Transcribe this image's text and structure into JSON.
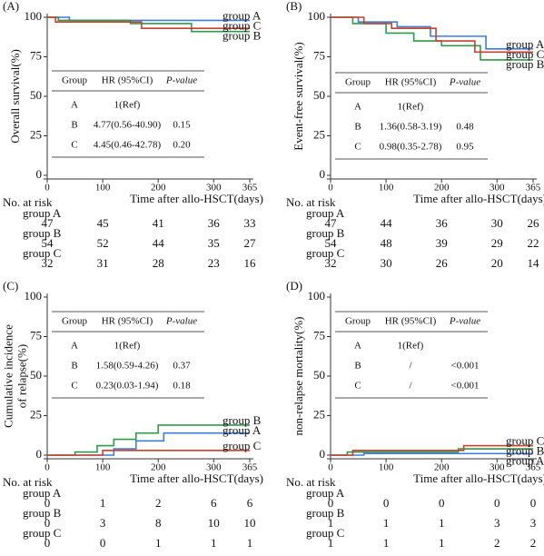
{
  "chart_data": [
    {
      "type": "line",
      "panel": "(A)",
      "y_label": [
        "Overall survival(%)"
      ],
      "x_label": "Time after allo-HSCT(days)",
      "xlim": [
        0,
        365
      ],
      "ylim": [
        0,
        100
      ],
      "xticks": [
        0,
        100,
        200,
        300,
        365
      ],
      "yticks": [
        0,
        25,
        50,
        75,
        100
      ],
      "series": [
        {
          "name": "group A",
          "color": "#3b7dd8",
          "x": [
            0,
            40,
            365
          ],
          "values": [
            100,
            98,
            98
          ]
        },
        {
          "name": "group B",
          "color": "#2e9a4a",
          "x": [
            0,
            20,
            150,
            260,
            365
          ],
          "values": [
            100,
            98,
            96,
            91,
            91
          ]
        },
        {
          "name": "group C",
          "color": "#c8412f",
          "x": [
            0,
            15,
            170,
            365
          ],
          "values": [
            100,
            97,
            93,
            93
          ]
        }
      ],
      "hr_table": {
        "headers": [
          "Group",
          "HR (95%CI)",
          "P-value"
        ],
        "rows": [
          [
            "A",
            "1(Ref)",
            ""
          ],
          [
            "B",
            "4.77(0.56-40.90)",
            "0.15"
          ],
          [
            "C",
            "4.45(0.46-42.78)",
            "0.20"
          ]
        ]
      },
      "at_risk": {
        "title": "No. at risk",
        "rows": [
          {
            "name": "group A",
            "values": [
              47,
              45,
              41,
              36,
              33
            ]
          },
          {
            "name": "group B",
            "values": [
              54,
              52,
              44,
              35,
              27
            ]
          },
          {
            "name": "group C",
            "values": [
              32,
              31,
              28,
              23,
              16
            ]
          }
        ]
      }
    },
    {
      "type": "line",
      "panel": "(B)",
      "y_label": [
        "Event-free survival(%)"
      ],
      "x_label": "Time after allo-HSCT(days)",
      "xlim": [
        0,
        365
      ],
      "ylim": [
        0,
        100
      ],
      "xticks": [
        0,
        100,
        200,
        300,
        365
      ],
      "yticks": [
        0,
        25,
        50,
        75,
        100
      ],
      "series": [
        {
          "name": "group A",
          "color": "#3b7dd8",
          "x": [
            0,
            50,
            120,
            180,
            280,
            365
          ],
          "values": [
            100,
            97,
            94,
            88,
            80,
            80
          ]
        },
        {
          "name": "group B",
          "color": "#2e9a4a",
          "x": [
            0,
            40,
            100,
            150,
            200,
            270,
            365
          ],
          "values": [
            100,
            96,
            90,
            85,
            82,
            73,
            73
          ]
        },
        {
          "name": "group C",
          "color": "#c8412f",
          "x": [
            0,
            60,
            110,
            190,
            260,
            365
          ],
          "values": [
            100,
            96,
            93,
            85,
            78,
            78
          ]
        }
      ],
      "hr_table": {
        "headers": [
          "Group",
          "HR (95%CI)",
          "P-value"
        ],
        "rows": [
          [
            "A",
            "1(Ref)",
            ""
          ],
          [
            "B",
            "1.36(0.58-3.19)",
            "0.48"
          ],
          [
            "C",
            "0.98(0.35-2.78)",
            "0.95"
          ]
        ]
      },
      "at_risk": {
        "title": "No. at risk",
        "rows": [
          {
            "name": "group A",
            "values": [
              47,
              44,
              36,
              30,
              26
            ]
          },
          {
            "name": "group B",
            "values": [
              54,
              48,
              39,
              29,
              22
            ]
          },
          {
            "name": "group C",
            "values": [
              32,
              30,
              26,
              20,
              14
            ]
          }
        ]
      }
    },
    {
      "type": "line",
      "panel": "(C)",
      "y_label": [
        "Cumulative incidence",
        "of relapse(%)"
      ],
      "x_label": "Time after allo-HSCT(days)",
      "xlim": [
        0,
        365
      ],
      "ylim": [
        0,
        100
      ],
      "xticks": [
        0,
        100,
        200,
        300,
        365
      ],
      "yticks": [
        0,
        25,
        50,
        75,
        100
      ],
      "series": [
        {
          "name": "group A",
          "color": "#3b7dd8",
          "x": [
            0,
            120,
            160,
            210,
            365
          ],
          "values": [
            0,
            4,
            9,
            14,
            14
          ]
        },
        {
          "name": "group B",
          "color": "#2e9a4a",
          "x": [
            0,
            50,
            90,
            120,
            160,
            200,
            365
          ],
          "values": [
            0,
            2,
            6,
            10,
            14,
            19,
            19
          ]
        },
        {
          "name": "group C",
          "color": "#c8412f",
          "x": [
            0,
            100,
            365
          ],
          "values": [
            0,
            3,
            3
          ]
        }
      ],
      "hr_table": {
        "headers": [
          "Group",
          "HR (95%CI)",
          "P-value"
        ],
        "rows": [
          [
            "A",
            "1(Ref)",
            ""
          ],
          [
            "B",
            "1.58(0.59-4.26)",
            "0.37"
          ],
          [
            "C",
            "0.23(0.03-1.94)",
            "0.18"
          ]
        ]
      },
      "at_risk": {
        "title": "No. at risk",
        "rows": [
          {
            "name": "group A",
            "values": [
              0,
              1,
              2,
              6,
              6
            ]
          },
          {
            "name": "group B",
            "values": [
              0,
              3,
              8,
              10,
              10
            ]
          },
          {
            "name": "group C",
            "values": [
              0,
              0,
              1,
              1,
              1
            ]
          }
        ]
      }
    },
    {
      "type": "line",
      "panel": "(D)",
      "y_label": [
        "non-relapse mortality(%)"
      ],
      "x_label": "Time after allo-HSCT(days)",
      "xlim": [
        0,
        365
      ],
      "ylim": [
        0,
        100
      ],
      "xticks": [
        0,
        100,
        200,
        300,
        365
      ],
      "yticks": [
        0,
        25,
        50,
        75,
        100
      ],
      "series": [
        {
          "name": "group A",
          "color": "#3b7dd8",
          "x": [
            0,
            60,
            365
          ],
          "values": [
            0,
            1,
            1
          ]
        },
        {
          "name": "group B",
          "color": "#2e9a4a",
          "x": [
            0,
            30,
            230,
            365
          ],
          "values": [
            0,
            2,
            4,
            4
          ]
        },
        {
          "name": "group C",
          "color": "#c8412f",
          "x": [
            0,
            40,
            240,
            365
          ],
          "values": [
            0,
            3,
            6,
            6
          ]
        }
      ],
      "hr_table": {
        "headers": [
          "Group",
          "HR (95%CI)",
          "P-value"
        ],
        "rows": [
          [
            "A",
            "1(Ref)",
            ""
          ],
          [
            "B",
            "/",
            "<0.001"
          ],
          [
            "C",
            "/",
            "<0.001"
          ]
        ]
      },
      "at_risk": {
        "title": "No. at risk",
        "rows": [
          {
            "name": "group A",
            "values": [
              0,
              0,
              0,
              0,
              0
            ]
          },
          {
            "name": "group B",
            "values": [
              1,
              1,
              1,
              3,
              3
            ]
          },
          {
            "name": "group C",
            "values": [
              1,
              1,
              1,
              2,
              2
            ]
          }
        ]
      }
    }
  ]
}
